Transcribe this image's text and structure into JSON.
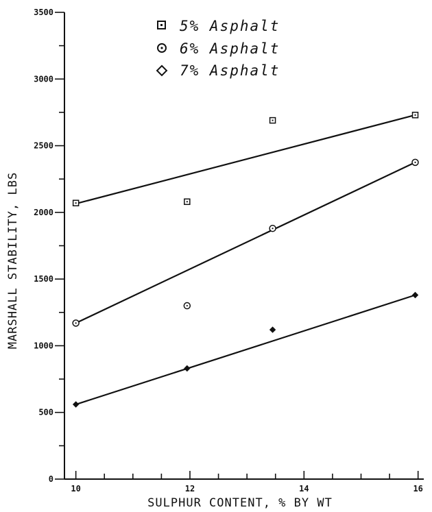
{
  "chart_data": {
    "type": "scatter",
    "xlabel": "SULPHUR CONTENT, % BY WT",
    "ylabel": "MARSHALL STABILITY, LBS",
    "xlim": [
      9.8,
      16.1
    ],
    "ylim": [
      0,
      3500
    ],
    "x_ticks": [
      10,
      12,
      14,
      16
    ],
    "y_ticks": [
      0,
      500,
      1000,
      1500,
      2000,
      2500,
      3000,
      3500
    ],
    "x_minor_step": 0.5,
    "y_minor_step": 250,
    "legend_position": "top-center",
    "series": [
      {
        "name": "5% Asphalt",
        "marker": "square",
        "points": [
          [
            10.0,
            2070
          ],
          [
            11.95,
            2080
          ],
          [
            13.45,
            2690
          ],
          [
            15.95,
            2730
          ]
        ],
        "fit_line": [
          [
            10.0,
            2065
          ],
          [
            15.95,
            2730
          ]
        ]
      },
      {
        "name": "6% Asphalt",
        "marker": "circle",
        "points": [
          [
            10.0,
            1170
          ],
          [
            11.95,
            1300
          ],
          [
            13.45,
            1880
          ],
          [
            15.95,
            2375
          ]
        ],
        "fit_line": [
          [
            10.0,
            1170
          ],
          [
            15.95,
            2375
          ]
        ]
      },
      {
        "name": "7% Asphalt",
        "marker": "diamond",
        "points": [
          [
            10.0,
            560
          ],
          [
            11.95,
            830
          ],
          [
            13.45,
            1120
          ],
          [
            15.95,
            1380
          ]
        ],
        "fit_line": [
          [
            10.0,
            560
          ],
          [
            15.95,
            1380
          ]
        ]
      }
    ]
  }
}
